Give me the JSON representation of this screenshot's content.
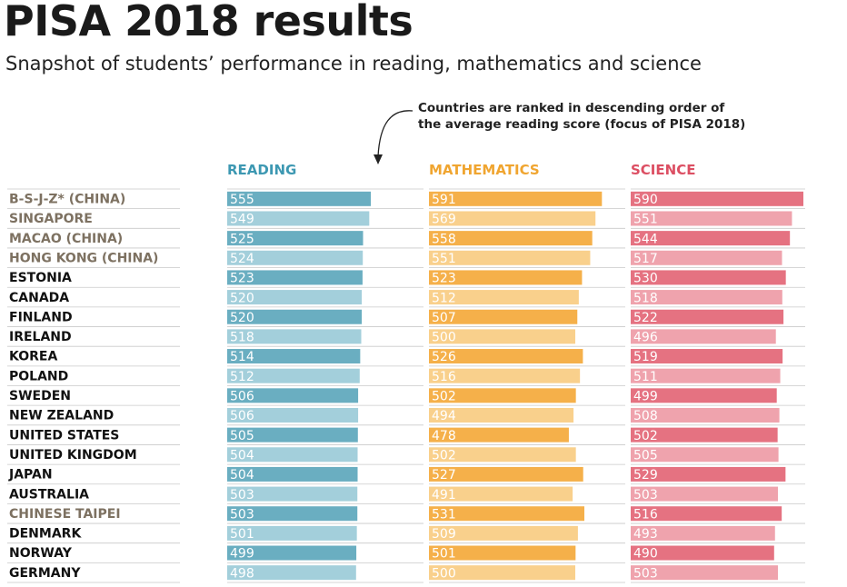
{
  "title": "PISA 2018 results",
  "subtitle": "Snapshot of students’ performance in reading, mathematics and science",
  "note": {
    "line1": "Countries are ranked in descending order of",
    "line2": "the average reading score (focus of PISA 2018)"
  },
  "colors": {
    "reading_dark": "#6aaec1",
    "reading_light": "#a3cfdb",
    "math_dark": "#f5b04a",
    "math_light": "#f9d08c",
    "science_dark": "#e57281",
    "science_light": "#efa3ad",
    "label_above_average": "#7d7161",
    "label_default": "#111111",
    "reading_head": "#3d98b2",
    "math_head": "#f0a530",
    "science_head": "#dc4f63"
  },
  "chart_data": {
    "type": "bar",
    "orientation": "horizontal",
    "categories": [
      "B-S-J-Z* (CHINA)",
      "SINGAPORE",
      "MACAO (CHINA)",
      "HONG KONG (CHINA)",
      "ESTONIA",
      "CANADA",
      "FINLAND",
      "IRELAND",
      "KOREA",
      "POLAND",
      "SWEDEN",
      "NEW ZEALAND",
      "UNITED STATES",
      "UNITED KINGDOM",
      "JAPAN",
      "AUSTRALIA",
      "CHINESE TAIPEI",
      "DENMARK",
      "NORWAY",
      "GERMANY"
    ],
    "highlighted_categories": [
      "B-S-J-Z* (CHINA)",
      "SINGAPORE",
      "MACAO (CHINA)",
      "HONG KONG (CHINA)",
      "CHINESE TAIPEI"
    ],
    "series": [
      {
        "name": "READING",
        "values": [
          555,
          549,
          525,
          524,
          523,
          520,
          520,
          518,
          514,
          512,
          506,
          506,
          505,
          504,
          504,
          503,
          503,
          501,
          499,
          498
        ]
      },
      {
        "name": "MATHEMATICS",
        "values": [
          591,
          569,
          558,
          551,
          523,
          512,
          507,
          500,
          526,
          516,
          502,
          494,
          478,
          502,
          527,
          491,
          531,
          509,
          501,
          500
        ]
      },
      {
        "name": "SCIENCE",
        "values": [
          590,
          551,
          544,
          517,
          530,
          518,
          522,
          496,
          519,
          511,
          499,
          508,
          502,
          505,
          529,
          503,
          516,
          493,
          490,
          503
        ]
      }
    ],
    "xlim": [
      0,
      590
    ],
    "title": "PISA 2018 results",
    "annotation": "Countries are ranked in descending order of the average reading score (focus of PISA 2018)"
  }
}
